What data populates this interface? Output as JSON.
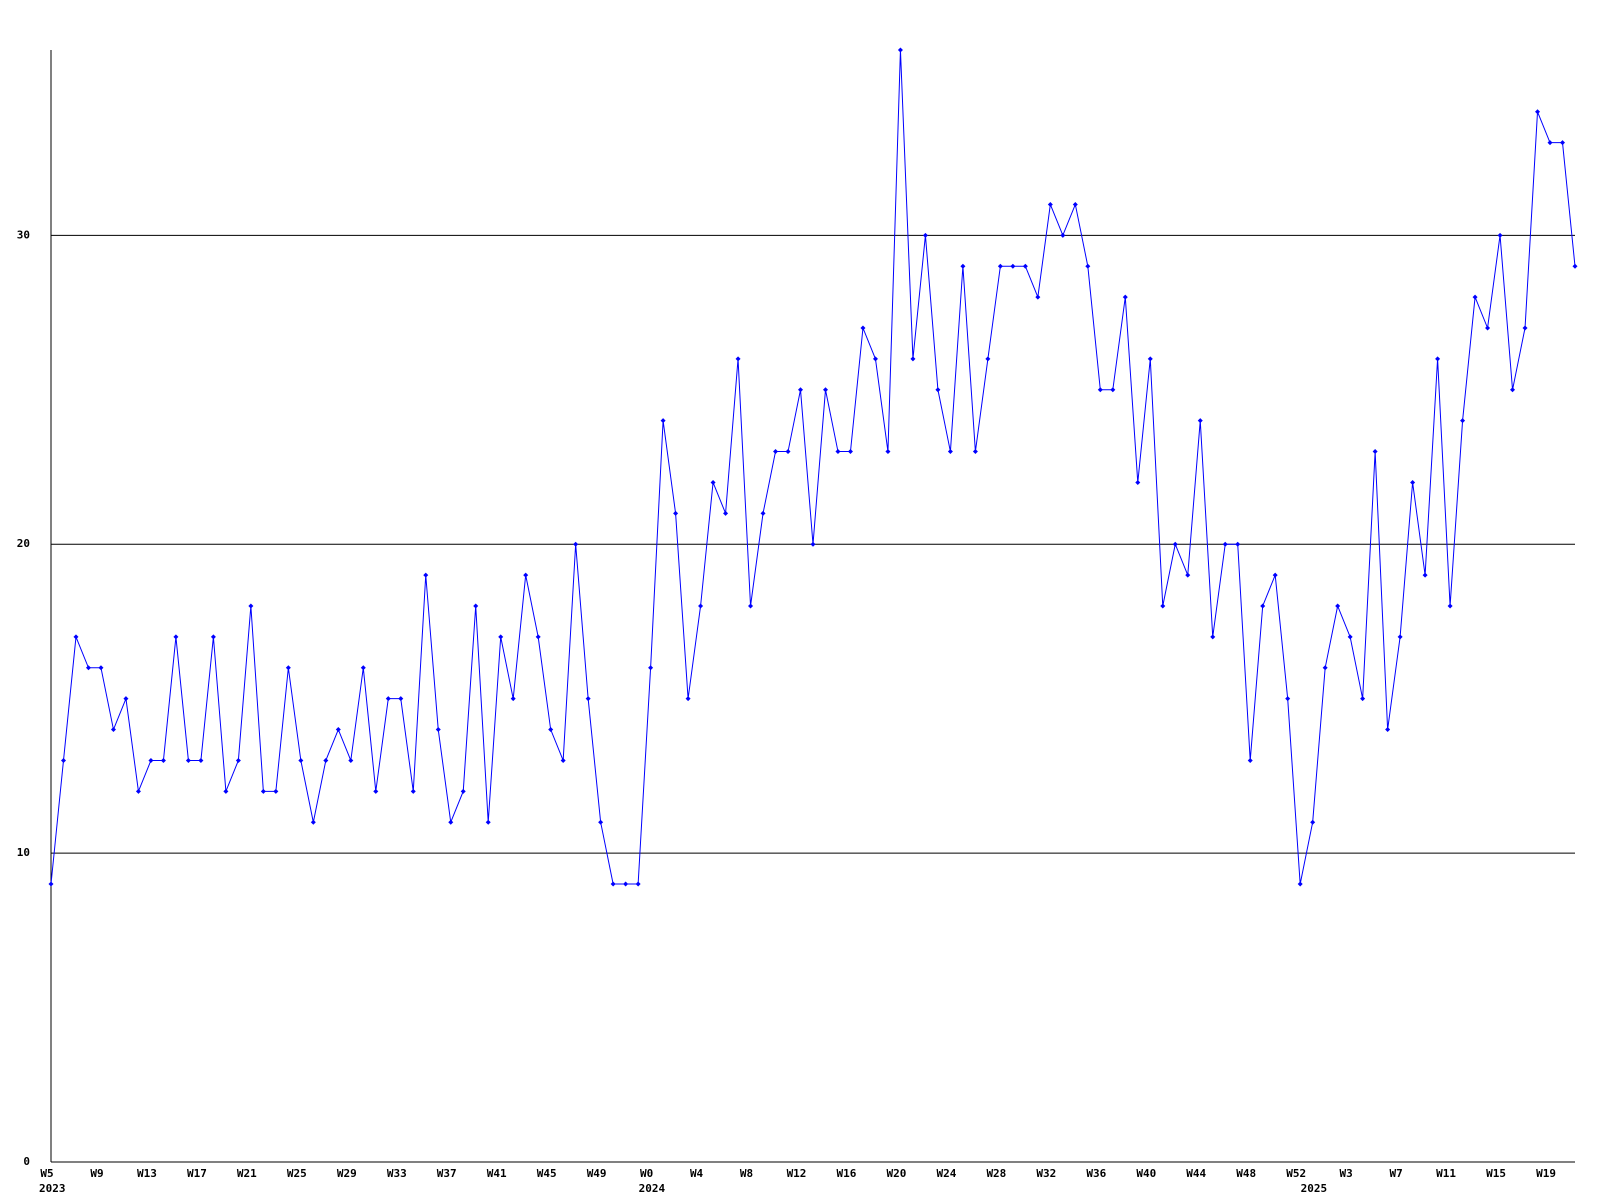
{
  "chart_data": {
    "type": "line",
    "categories": [
      "W5",
      null,
      null,
      null,
      "W9",
      null,
      null,
      null,
      "W13",
      null,
      null,
      null,
      "W17",
      null,
      null,
      null,
      "W21",
      null,
      null,
      null,
      "W25",
      null,
      null,
      null,
      "W29",
      null,
      null,
      null,
      "W33",
      null,
      null,
      null,
      "W37",
      null,
      null,
      null,
      "W41",
      null,
      null,
      null,
      "W45",
      null,
      null,
      null,
      "W49",
      null,
      null,
      null,
      "W0",
      null,
      null,
      null,
      "W4",
      null,
      null,
      null,
      "W8",
      null,
      null,
      null,
      "W12",
      null,
      null,
      null,
      "W16",
      null,
      null,
      null,
      "W20",
      null,
      null,
      null,
      "W24",
      null,
      null,
      null,
      "W28",
      null,
      null,
      null,
      "W32",
      null,
      null,
      null,
      "W36",
      null,
      null,
      null,
      "W40",
      null,
      null,
      null,
      "W44",
      null,
      null,
      null,
      "W48",
      null,
      null,
      null,
      "W52",
      null,
      null,
      null,
      "W3",
      null,
      null,
      null,
      "W7",
      null,
      null,
      null,
      "W11",
      null,
      null,
      null,
      "W15",
      null,
      null,
      null,
      "W19",
      null,
      null
    ],
    "x_group_labels": [
      {
        "at": 0,
        "label": "2023"
      },
      {
        "at": 48,
        "label": "2024"
      },
      {
        "at": 101,
        "label": "2025"
      }
    ],
    "series": [
      {
        "color": "#0000ff",
        "values": [
          9,
          13,
          17,
          16,
          16,
          14,
          15,
          12,
          13,
          13,
          17,
          13,
          13,
          17,
          12,
          13,
          18,
          12,
          12,
          16,
          13,
          11,
          13,
          14,
          13,
          16,
          12,
          15,
          15,
          12,
          19,
          14,
          11,
          12,
          18,
          11,
          17,
          15,
          19,
          17,
          14,
          13,
          20,
          15,
          11,
          9,
          9,
          9,
          16,
          24,
          21,
          15,
          18,
          22,
          21,
          26,
          18,
          21,
          23,
          23,
          25,
          20,
          25,
          23,
          23,
          27,
          26,
          23,
          36,
          26,
          30,
          25,
          23,
          29,
          23,
          26,
          29,
          29,
          29,
          28,
          31,
          30,
          31,
          29,
          25,
          25,
          28,
          22,
          26,
          18,
          20,
          19,
          24,
          17,
          20,
          20,
          13,
          18,
          19,
          15,
          9,
          11,
          16,
          18,
          17,
          15,
          23,
          14,
          17,
          22,
          19,
          26,
          18,
          24,
          28,
          27,
          30,
          25,
          27,
          34,
          33,
          33,
          29
        ]
      }
    ],
    "ylim": [
      0,
      36
    ],
    "yticks": [
      0,
      10,
      20,
      30
    ],
    "grid": true
  }
}
